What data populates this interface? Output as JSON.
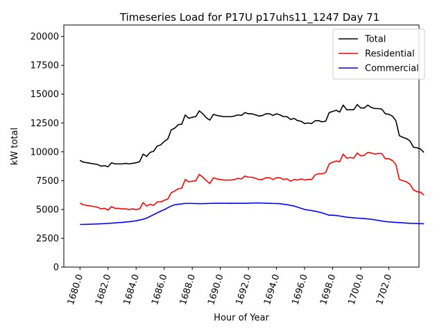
{
  "chart_data": {
    "type": "line",
    "title": "Timeseries Load for P17U p17uhs11_1247  Day 71",
    "xlabel": "Hour of Year",
    "ylabel": "kW total",
    "xlim": [
      1678.85,
      1704.15
    ],
    "ylim": [
      0,
      21000
    ],
    "xticks": [
      1680,
      1682,
      1684,
      1686,
      1688,
      1690,
      1692,
      1694,
      1696,
      1698,
      1700,
      1702
    ],
    "xtick_labels": [
      "1680.0",
      "1682.0",
      "1684.0",
      "1686.0",
      "1688.0",
      "1690.0",
      "1692.0",
      "1694.0",
      "1696.0",
      "1698.0",
      "1700.0",
      "1702.0"
    ],
    "yticks": [
      0,
      2500,
      5000,
      7500,
      10000,
      12500,
      15000,
      17500,
      20000
    ],
    "ytick_labels": [
      "0",
      "2500",
      "5000",
      "7500",
      "10000",
      "12500",
      "15000",
      "17500",
      "20000"
    ],
    "legend_position": "top-right",
    "x_start": 1680,
    "x_step": 0.25,
    "series": [
      {
        "name": "Total",
        "color": "#000000",
        "values": [
          9250,
          9100,
          9050,
          9000,
          8950,
          8900,
          8750,
          8800,
          8700,
          9050,
          8950,
          8950,
          8950,
          9000,
          8950,
          9000,
          9050,
          9150,
          9800,
          9600,
          9950,
          10050,
          10500,
          10600,
          10900,
          11100,
          11900,
          12050,
          12350,
          12400,
          13200,
          12900,
          13000,
          13050,
          13550,
          13300,
          12950,
          12750,
          13250,
          13150,
          13100,
          13050,
          13050,
          13050,
          13100,
          13200,
          13150,
          13400,
          13300,
          13300,
          13200,
          13100,
          13150,
          13300,
          13300,
          13150,
          13300,
          13200,
          13050,
          13050,
          12800,
          12900,
          12700,
          12650,
          12450,
          12500,
          12450,
          12700,
          12700,
          12600,
          12650,
          13400,
          13500,
          13600,
          13450,
          14050,
          13650,
          13650,
          13650,
          14100,
          13800,
          13800,
          14050,
          13850,
          13750,
          13750,
          13700,
          13300,
          13250,
          13100,
          12700,
          11400,
          11250,
          11150,
          10950,
          10400,
          10350,
          10250,
          9950
        ]
      },
      {
        "name": "Residential",
        "color": "#ff0000",
        "values": [
          5550,
          5400,
          5350,
          5300,
          5250,
          5200,
          5050,
          5100,
          4950,
          5250,
          5100,
          5100,
          5050,
          5050,
          5000,
          5050,
          5000,
          5050,
          5600,
          5300,
          5450,
          5350,
          5650,
          5650,
          5800,
          5900,
          6450,
          6600,
          6800,
          6850,
          7600,
          7400,
          7450,
          7500,
          8050,
          7800,
          7500,
          7250,
          7750,
          7650,
          7600,
          7550,
          7550,
          7550,
          7600,
          7700,
          7650,
          7900,
          7800,
          7800,
          7700,
          7600,
          7600,
          7750,
          7750,
          7600,
          7750,
          7750,
          7600,
          7650,
          7450,
          7600,
          7550,
          7650,
          7550,
          7600,
          7600,
          8000,
          8100,
          8100,
          8200,
          8950,
          9100,
          9200,
          9150,
          9800,
          9450,
          9500,
          9450,
          9900,
          9650,
          9700,
          9950,
          9900,
          9800,
          9850,
          9850,
          9400,
          9400,
          9250,
          8900,
          7600,
          7500,
          7400,
          7200,
          6700,
          6550,
          6500,
          6250
        ]
      },
      {
        "name": "Commercial",
        "color": "#0000ff",
        "values": [
          3700,
          3700,
          3710,
          3720,
          3730,
          3740,
          3760,
          3770,
          3790,
          3810,
          3830,
          3860,
          3880,
          3910,
          3940,
          3970,
          4020,
          4080,
          4150,
          4250,
          4400,
          4550,
          4700,
          4850,
          4980,
          5150,
          5300,
          5400,
          5450,
          5480,
          5520,
          5520,
          5520,
          5510,
          5500,
          5500,
          5510,
          5520,
          5530,
          5540,
          5540,
          5530,
          5530,
          5540,
          5530,
          5530,
          5530,
          5530,
          5540,
          5550,
          5560,
          5560,
          5550,
          5540,
          5530,
          5520,
          5510,
          5500,
          5450,
          5420,
          5350,
          5300,
          5200,
          5100,
          5000,
          4950,
          4900,
          4850,
          4780,
          4700,
          4600,
          4500,
          4500,
          4480,
          4430,
          4380,
          4330,
          4300,
          4270,
          4250,
          4230,
          4210,
          4180,
          4150,
          4100,
          4050,
          4000,
          3950,
          3920,
          3900,
          3880,
          3860,
          3840,
          3820,
          3800,
          3790,
          3780,
          3770,
          3760
        ]
      }
    ]
  }
}
